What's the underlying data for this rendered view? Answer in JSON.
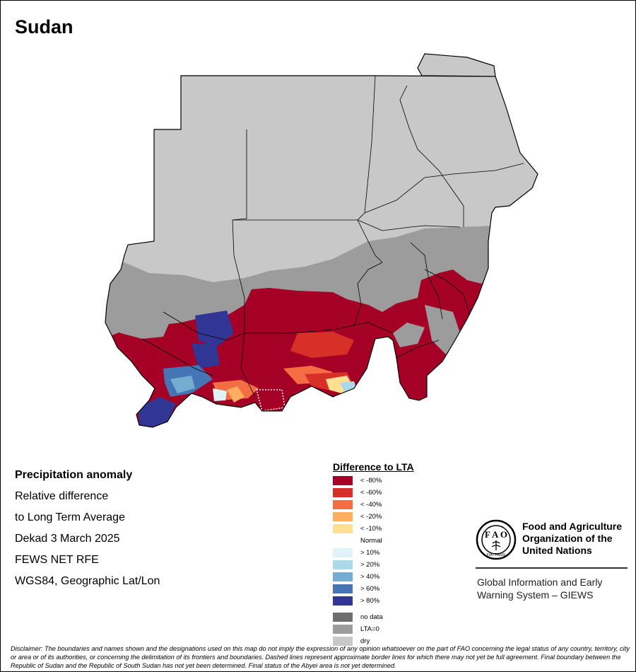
{
  "title": "Sudan",
  "info": {
    "heading": "Precipitation anomaly",
    "lines": [
      "Relative difference",
      "to Long Term Average",
      "Dekad 3 March 2025",
      "FEWS NET RFE",
      "WGS84, Geographic Lat/Lon"
    ]
  },
  "legend": {
    "title": "Difference to LTA",
    "items": [
      {
        "label": "< -80%",
        "color": "#a50026"
      },
      {
        "label": "< -60%",
        "color": "#d73027"
      },
      {
        "label": "< -40%",
        "color": "#f46d43"
      },
      {
        "label": "< -20%",
        "color": "#fdae61"
      },
      {
        "label": "< -10%",
        "color": "#fee090"
      },
      {
        "label": "Normal",
        "color": "#ffffff"
      },
      {
        "label": "> 10%",
        "color": "#e0f3f8"
      },
      {
        "label": "> 20%",
        "color": "#abd9e9"
      },
      {
        "label": "> 40%",
        "color": "#74add1"
      },
      {
        "label": "> 60%",
        "color": "#4575b4"
      },
      {
        "label": "> 80%",
        "color": "#313695"
      }
    ],
    "extra": [
      {
        "label": "no data",
        "color": "#6e6e6e"
      },
      {
        "label": "LTA=0",
        "color": "#9c9c9c"
      },
      {
        "label": "dry",
        "color": "#c8c8c8"
      }
    ]
  },
  "map_colors": {
    "dry": "#c8c8c8",
    "lta_zero": "#9c9c9c",
    "deficit": "#a50026"
  },
  "fao": {
    "logo_text": "FIAT PANIS",
    "name_lines": [
      "Food and Agriculture",
      "Organization of the",
      "United Nations"
    ],
    "giews_lines": [
      "Global Information and Early",
      "Warning System – GIEWS"
    ]
  },
  "disclaimer": "Disclaimer: The boundaries and names shown and the designations used on this map do not imply the expression of any opinion whatsoever on the part of FAO concerning the legal status of any country, territory, city or area or of its authorities, or concerning the delimitation of its frontiers and boundaries. Dashed lines represent approximate border lines for which there may not yet be full agreement. Final boundary between the Republic of Sudan and the Republic of South Sudan has not yet been determined. Final status of the Abyei area is not yet determined."
}
